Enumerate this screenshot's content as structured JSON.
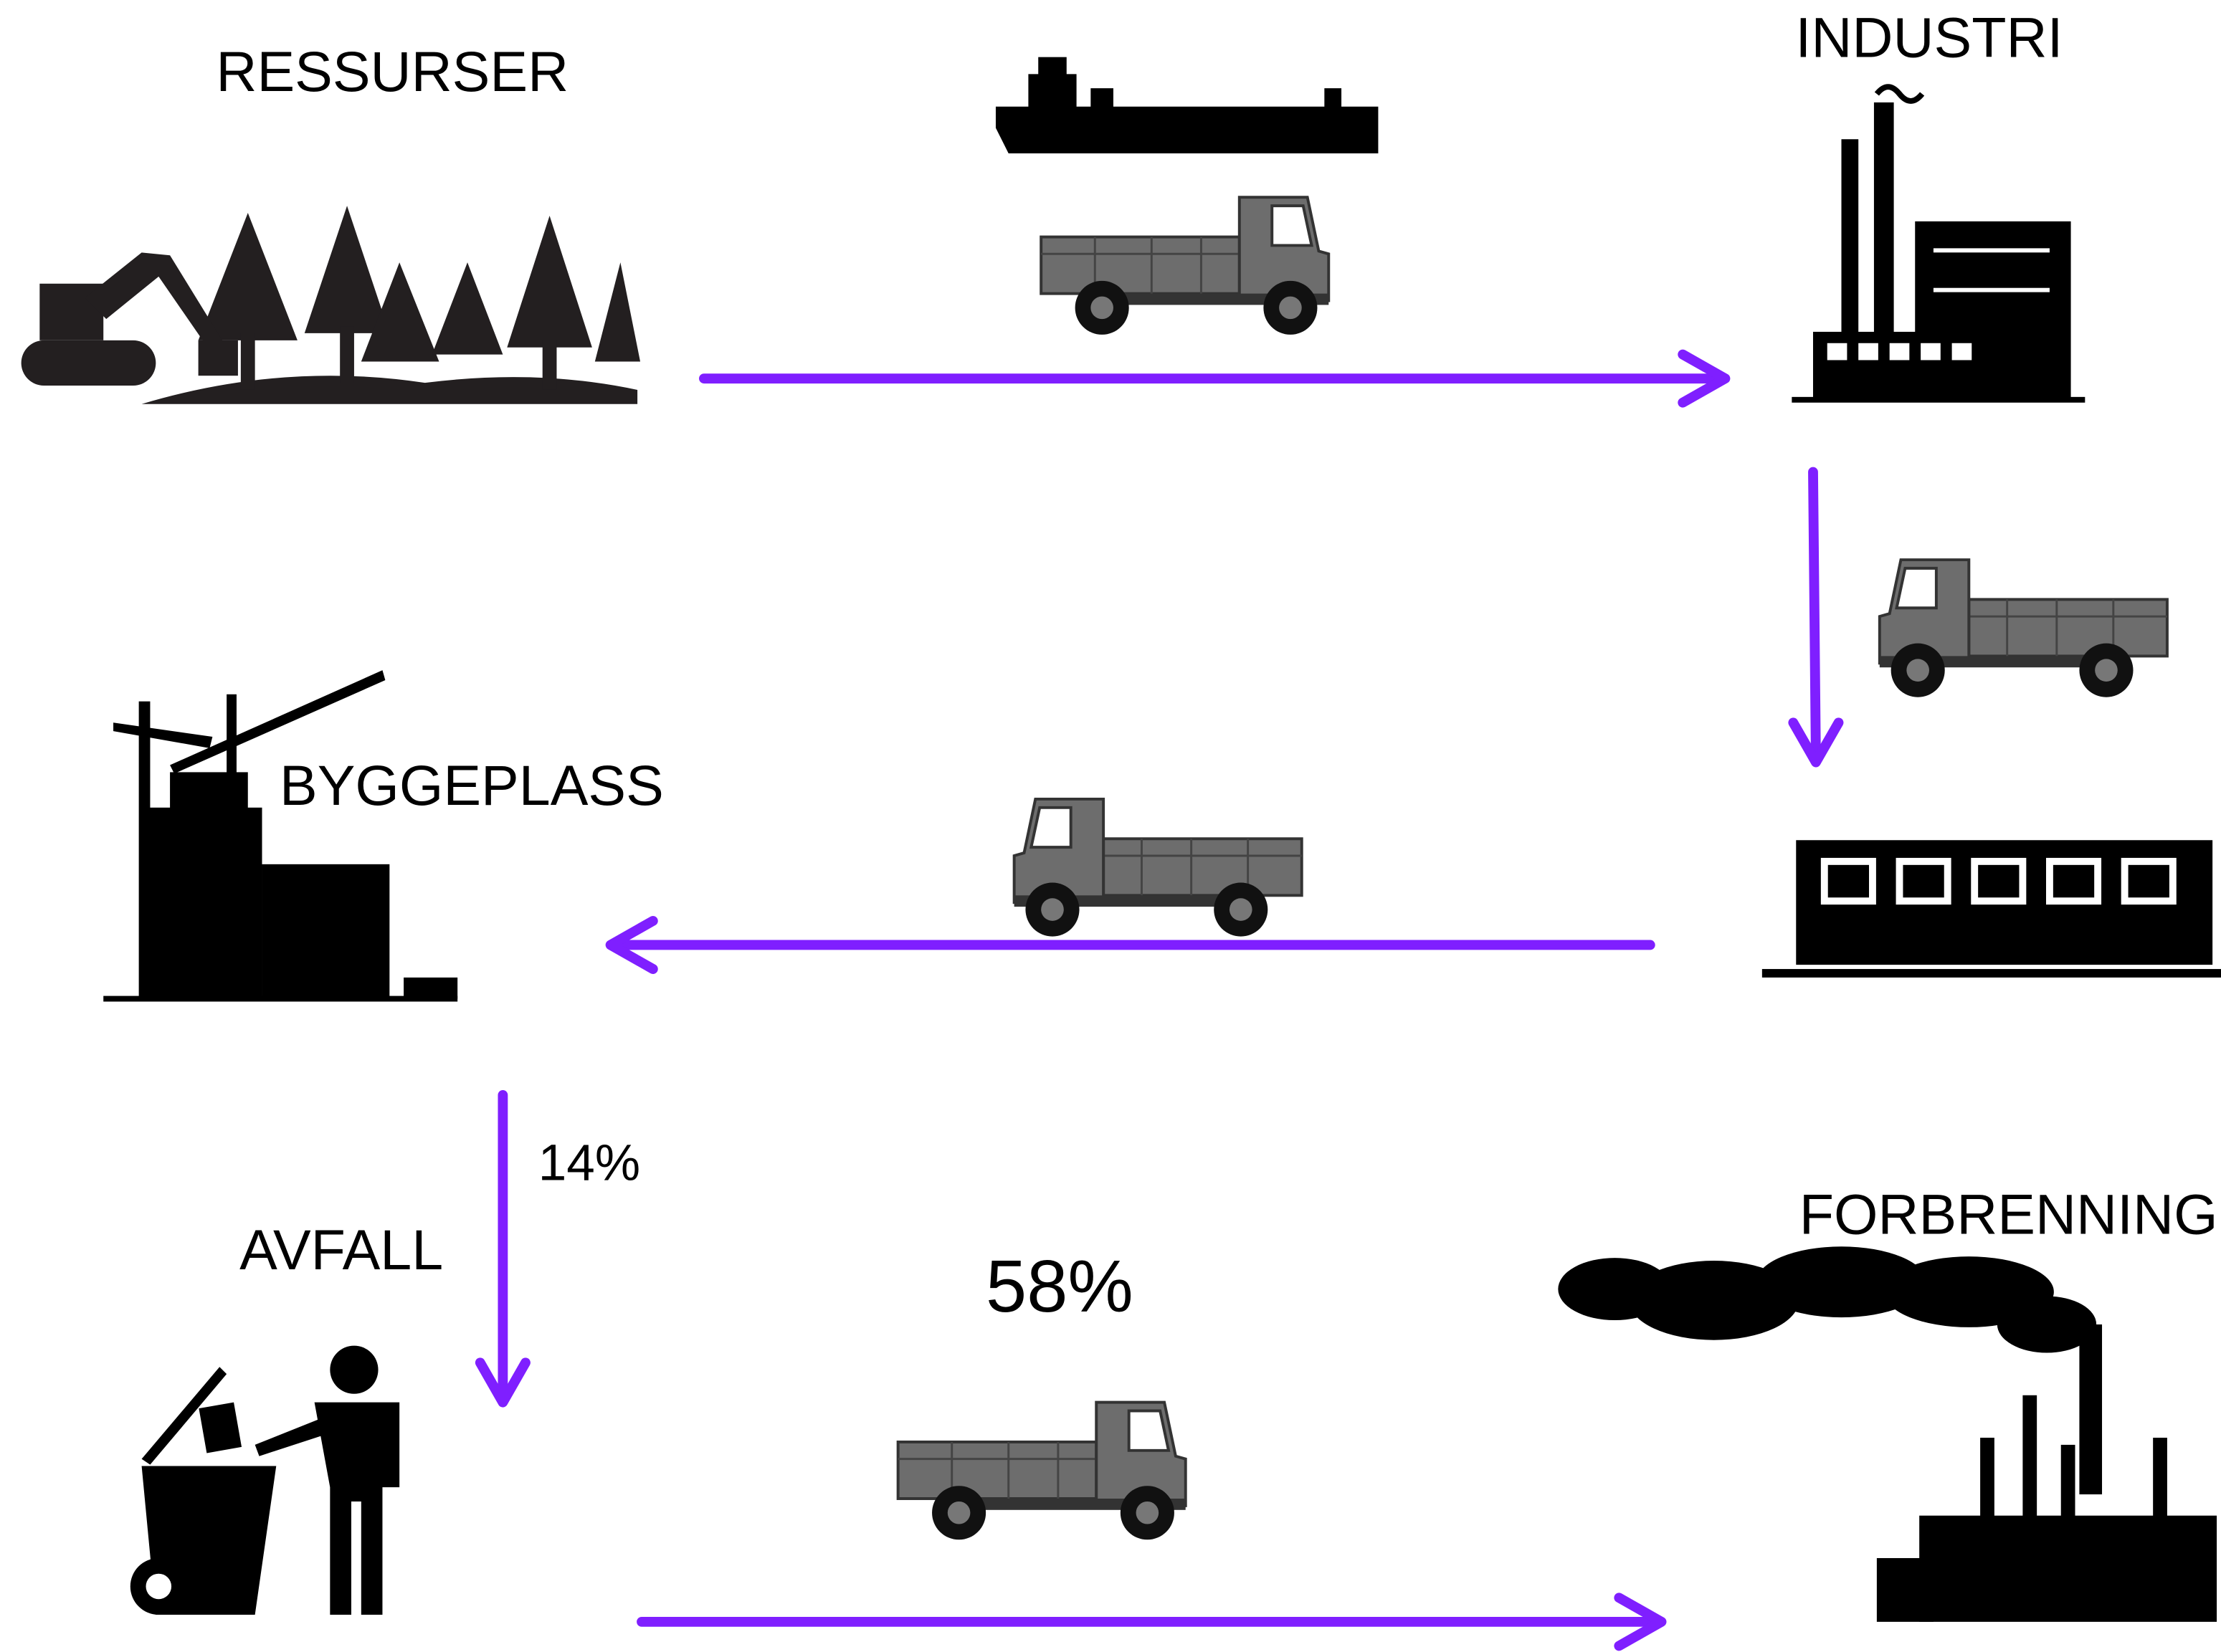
{
  "nodes": [
    {
      "label": "RESSURSER"
    },
    {
      "label": "INDUSTRI"
    },
    {
      "label": "BYGGEPLASS"
    },
    {
      "label": "AVFALL"
    },
    {
      "label": "FORBRENNING"
    }
  ],
  "edges": [
    {
      "label": "14%"
    },
    {
      "label": "58%"
    }
  ]
}
